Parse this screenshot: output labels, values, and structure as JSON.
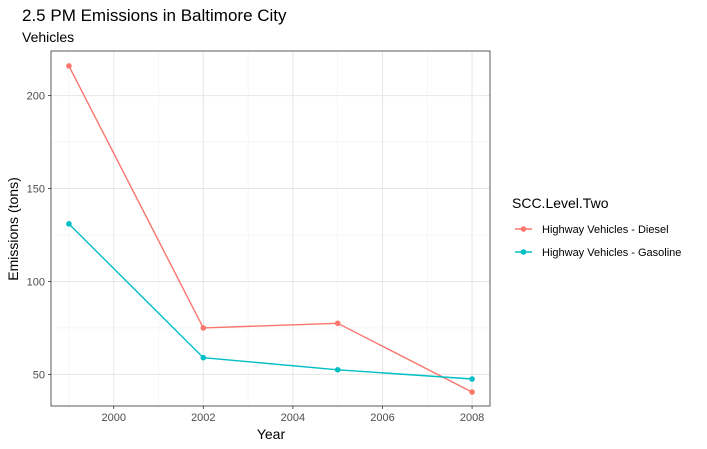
{
  "chart_data": {
    "type": "line",
    "title": "2.5 PM Emissions in Baltimore City",
    "subtitle": "Vehicles",
    "xlabel": "Year",
    "ylabel": "Emissions (tons)",
    "x": [
      1999,
      2002,
      2005,
      2008
    ],
    "xlim": [
      1998.6,
      2008.4
    ],
    "ylim": [
      33,
      224
    ],
    "x_ticks": [
      2000,
      2002,
      2004,
      2006,
      2008
    ],
    "y_ticks": [
      50,
      100,
      150,
      200
    ],
    "grid": true,
    "legend_title": "SCC.Level.Two",
    "legend_position": "right",
    "series": [
      {
        "name": "Highway Vehicles - Diesel",
        "color": "#F8766D",
        "values": [
          216,
          75,
          77.5,
          40.5
        ]
      },
      {
        "name": "Highway Vehicles - Gasoline",
        "color": "#00BFC4",
        "values": [
          131,
          59,
          52.5,
          47.5
        ]
      }
    ]
  }
}
